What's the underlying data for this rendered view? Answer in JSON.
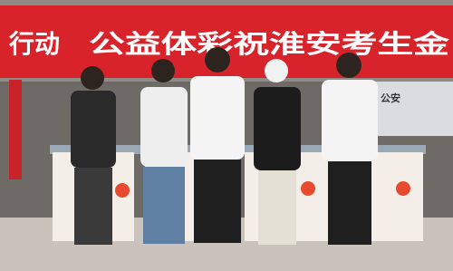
{
  "banner": {
    "left": "行动",
    "main": "公益体彩祝淮安考生金"
  },
  "sign": "公安"
}
